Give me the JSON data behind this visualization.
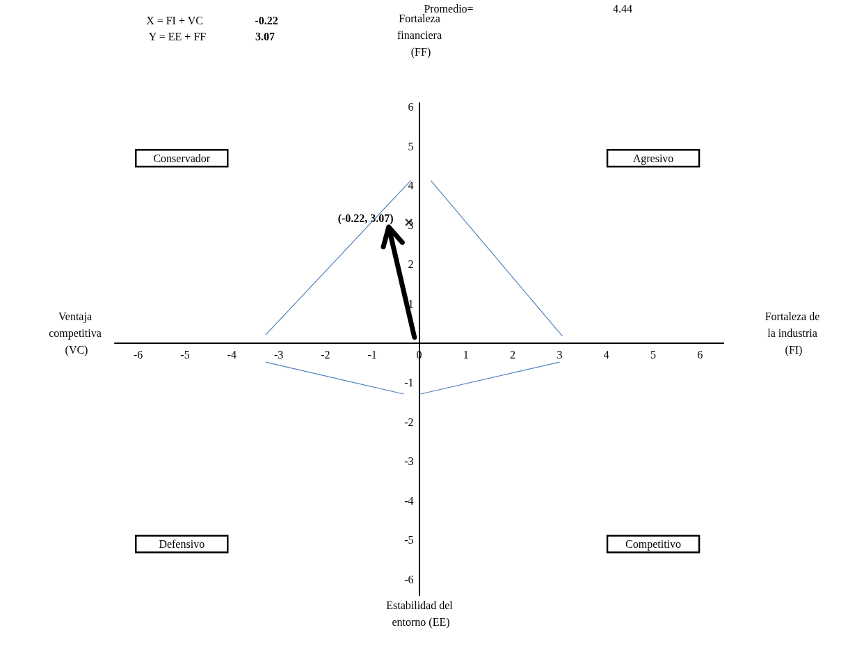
{
  "chart_data": {
    "type": "line",
    "xlabel": "Fortaleza de la industria (FI)",
    "ylabel": "Fortaleza financiera (FF)",
    "xlim": [
      -6.5,
      6.5
    ],
    "ylim": [
      -6.4,
      6.1
    ],
    "xticks": [
      -6,
      -5,
      -4,
      -3,
      -2,
      -1,
      0,
      1,
      2,
      3,
      4,
      5,
      6
    ],
    "yticks": [
      -6,
      -5,
      -4,
      -3,
      -2,
      -1,
      1,
      2,
      3,
      4,
      5,
      6
    ],
    "grid": false,
    "marker": "none",
    "series": [
      {
        "color": "#4f81bd",
        "x": [
          -3.28,
          -0.18
        ],
        "values": [
          0.21,
          4.13
        ]
      },
      {
        "color": "#4f81bd",
        "x": [
          0.25,
          3.06
        ],
        "values": [
          4.13,
          0.18
        ]
      },
      {
        "color": "#4f81bd",
        "x": [
          -3.28,
          -0.33
        ],
        "values": [
          -0.48,
          -1.29
        ]
      },
      {
        "color": "#4f81bd",
        "x": [
          0.03,
          3.0
        ],
        "values": [
          -1.29,
          -0.48
        ]
      },
      {
        "type": "scatter",
        "color": "#000000",
        "marker": "cross",
        "x": [
          -0.22
        ],
        "values": [
          3.07
        ]
      }
    ],
    "annotations": [
      "Ventaja competitiva (VC)",
      "Estabilidad del entorno (EE)",
      "Conservador",
      "Agresivo",
      "Defensivo",
      "Competitivo",
      "Promedio=",
      "4.44",
      "X = FI + VC",
      "-0.22",
      "Y = EE + FF",
      "3.07",
      {
        "text": "(-0.22, 3.07)",
        "x": -0.22,
        "y": 3.07
      }
    ]
  }
}
